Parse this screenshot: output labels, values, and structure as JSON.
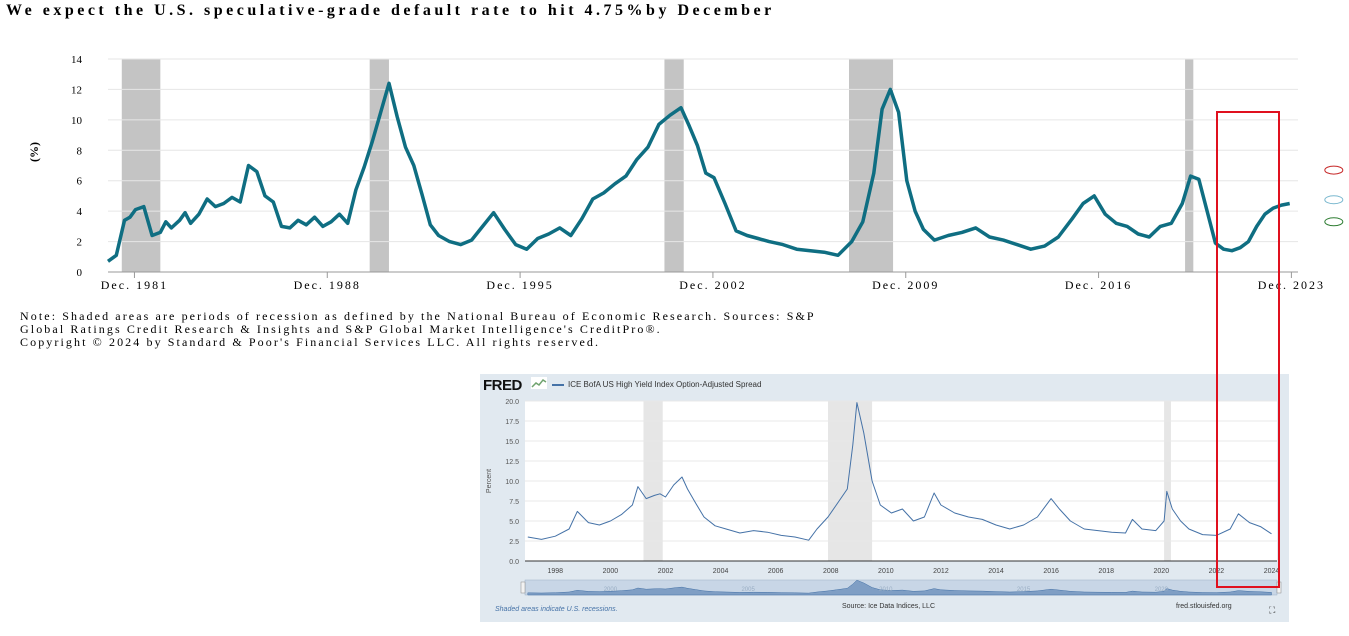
{
  "title": "We expect the U.S. speculative-grade default rate to hit 4.75%by December",
  "note_lines": [
    "Note: Shaded areas are periods of recession as defined by the National Bureau of Economic Research. Sources: S&P",
    "Global Ratings Credit Research & Insights and S&P Global Market Intelligence's CreditPro®.",
    "Copyright © 2024 by Standard & Poor's Financial Services LLC. All rights reserved."
  ],
  "fred": {
    "logo": "FRED",
    "legend": "ICE BofA US High Yield Index Option-Adjusted Spread",
    "footer_left": "Shaded areas indicate U.S. recessions.",
    "footer_source": "Source: Ice Data Indices, LLC",
    "footer_url": "fred.stlouisfed.org",
    "navigator_labels": [
      "2000",
      "2005",
      "2010",
      "2015",
      "2020"
    ]
  },
  "colors": {
    "default_rate_line": "#0f6e82",
    "recession_shade": "#c4c4c4",
    "fred_line": "#4572a7",
    "fred_background": "#e1e9f0",
    "fred_recession": "#e6e6e6",
    "highlight_box": "#e0101e",
    "marker_optimistic": "#2e7d32",
    "marker_base": "#7ab8cf",
    "marker_pessimistic": "#c62828"
  },
  "chart_data": [
    {
      "type": "line",
      "title": "We expect the U.S. speculative-grade default rate to hit 4.75%by December",
      "ylabel": "(%)",
      "xlabel": "",
      "ylim": [
        0,
        14
      ],
      "yticks": [
        0,
        2,
        4,
        6,
        8,
        10,
        12,
        14
      ],
      "xlim": [
        1981.0,
        2024.2
      ],
      "xtick_labels": [
        "Dec. 1981",
        "Dec. 1988",
        "Dec. 1995",
        "Dec. 2002",
        "Dec. 2009",
        "Dec. 2016",
        "Dec. 2023"
      ],
      "xtick_values": [
        1981.96,
        1988.96,
        1995.96,
        2002.96,
        2009.96,
        2016.96,
        2023.96
      ],
      "grid": true,
      "recessions": [
        [
          1981.5,
          1982.9
        ],
        [
          1990.5,
          1991.2
        ],
        [
          2001.2,
          2001.9
        ],
        [
          2007.9,
          2009.5
        ],
        [
          2020.1,
          2020.4
        ]
      ],
      "scenario_markers": [
        {
          "scenario": "pessimistic",
          "x": 2025.5,
          "y": 6.7
        },
        {
          "scenario": "base",
          "x": 2025.5,
          "y": 4.75
        },
        {
          "scenario": "optimistic",
          "x": 2025.5,
          "y": 3.3
        }
      ],
      "series": [
        {
          "name": "",
          "x": [
            1981.0,
            1981.3,
            1981.6,
            1981.8,
            1982.0,
            1982.3,
            1982.6,
            1982.9,
            1983.1,
            1983.3,
            1983.6,
            1983.8,
            1984.0,
            1984.3,
            1984.6,
            1984.9,
            1985.2,
            1985.5,
            1985.8,
            1986.1,
            1986.4,
            1986.7,
            1987.0,
            1987.3,
            1987.6,
            1987.9,
            1988.2,
            1988.5,
            1988.8,
            1989.1,
            1989.4,
            1989.7,
            1990.0,
            1990.3,
            1990.6,
            1990.9,
            1991.2,
            1991.5,
            1991.8,
            1992.1,
            1992.4,
            1992.7,
            1993.0,
            1993.4,
            1993.8,
            1994.2,
            1994.6,
            1995.0,
            1995.4,
            1995.8,
            1996.2,
            1996.6,
            1997.0,
            1997.4,
            1997.8,
            1998.2,
            1998.6,
            1999.0,
            1999.4,
            1999.8,
            2000.2,
            2000.6,
            2001.0,
            2001.4,
            2001.8,
            2002.1,
            2002.4,
            2002.7,
            2003.0,
            2003.4,
            2003.8,
            2004.2,
            2004.6,
            2005.0,
            2005.5,
            2006.0,
            2006.5,
            2007.0,
            2007.5,
            2008.0,
            2008.4,
            2008.8,
            2009.1,
            2009.4,
            2009.7,
            2010.0,
            2010.3,
            2010.6,
            2011.0,
            2011.5,
            2012.0,
            2012.5,
            2013.0,
            2013.5,
            2014.0,
            2014.5,
            2015.0,
            2015.5,
            2016.0,
            2016.4,
            2016.8,
            2017.2,
            2017.6,
            2018.0,
            2018.4,
            2018.8,
            2019.2,
            2019.6,
            2020.0,
            2020.3,
            2020.6,
            2020.9,
            2021.2,
            2021.5,
            2021.8,
            2022.1,
            2022.4,
            2022.7,
            2023.0,
            2023.3,
            2023.6,
            2023.9
          ],
          "y": [
            0.7,
            1.1,
            3.4,
            3.6,
            4.1,
            4.3,
            2.4,
            2.6,
            3.3,
            2.9,
            3.4,
            3.9,
            3.2,
            3.8,
            4.8,
            4.3,
            4.5,
            4.9,
            4.6,
            7.0,
            6.6,
            5.0,
            4.6,
            3.0,
            2.9,
            3.4,
            3.1,
            3.6,
            3.0,
            3.3,
            3.8,
            3.2,
            5.4,
            6.9,
            8.6,
            10.5,
            12.4,
            10.2,
            8.2,
            7.0,
            5.1,
            3.1,
            2.4,
            2.0,
            1.8,
            2.1,
            3.0,
            3.9,
            2.8,
            1.8,
            1.5,
            2.2,
            2.5,
            2.9,
            2.4,
            3.5,
            4.8,
            5.2,
            5.8,
            6.3,
            7.4,
            8.2,
            9.7,
            10.3,
            10.8,
            9.6,
            8.3,
            6.5,
            6.2,
            4.5,
            2.7,
            2.4,
            2.2,
            2.0,
            1.8,
            1.5,
            1.4,
            1.3,
            1.1,
            2.0,
            3.3,
            6.5,
            10.7,
            12.0,
            10.5,
            6.0,
            4.0,
            2.8,
            2.1,
            2.4,
            2.6,
            2.9,
            2.3,
            2.1,
            1.8,
            1.5,
            1.7,
            2.3,
            3.5,
            4.5,
            5.0,
            3.8,
            3.2,
            3.0,
            2.5,
            2.3,
            3.0,
            3.2,
            4.5,
            6.3,
            6.1,
            4.0,
            1.9,
            1.5,
            1.4,
            1.6,
            2.0,
            3.0,
            3.8,
            4.2,
            4.4,
            4.5
          ]
        }
      ]
    },
    {
      "type": "line",
      "title": "",
      "ylabel": "Percent",
      "xlabel": "",
      "ylim": [
        0,
        20
      ],
      "yticks": [
        0.0,
        2.5,
        5.0,
        7.5,
        10.0,
        12.5,
        15.0,
        17.5,
        20.0
      ],
      "xlim": [
        1996.9,
        2024.2
      ],
      "xticks": [
        1998,
        2000,
        2002,
        2004,
        2006,
        2008,
        2010,
        2012,
        2014,
        2016,
        2018,
        2020,
        2022,
        2024
      ],
      "grid": true,
      "recessions": [
        [
          2001.2,
          2001.9
        ],
        [
          2007.9,
          2009.5
        ],
        [
          2020.1,
          2020.35
        ]
      ],
      "series": [
        {
          "name": "ICE BofA US High Yield Index Option-Adjusted Spread",
          "x": [
            1997.0,
            1997.5,
            1998.0,
            1998.5,
            1998.8,
            1999.2,
            1999.6,
            2000.0,
            2000.4,
            2000.8,
            2001.0,
            2001.3,
            2001.6,
            2001.8,
            2002.0,
            2002.3,
            2002.6,
            2002.8,
            2003.1,
            2003.4,
            2003.8,
            2004.2,
            2004.7,
            2005.2,
            2005.7,
            2006.2,
            2006.7,
            2007.2,
            2007.5,
            2007.9,
            2008.2,
            2008.6,
            2008.8,
            2008.95,
            2009.2,
            2009.5,
            2009.8,
            2010.2,
            2010.6,
            2011.0,
            2011.4,
            2011.75,
            2012.0,
            2012.5,
            2013.0,
            2013.5,
            2014.0,
            2014.5,
            2015.0,
            2015.5,
            2016.0,
            2016.3,
            2016.7,
            2017.2,
            2017.7,
            2018.2,
            2018.7,
            2018.95,
            2019.3,
            2019.8,
            2020.1,
            2020.2,
            2020.4,
            2020.7,
            2021.0,
            2021.5,
            2022.0,
            2022.5,
            2022.8,
            2023.2,
            2023.6,
            2024.0
          ],
          "y": [
            3.0,
            2.7,
            3.1,
            4.0,
            6.2,
            4.8,
            4.5,
            5.0,
            5.8,
            7.0,
            9.3,
            7.8,
            8.2,
            8.4,
            8.0,
            9.5,
            10.5,
            9.0,
            7.2,
            5.5,
            4.4,
            4.0,
            3.5,
            3.8,
            3.6,
            3.2,
            3.0,
            2.6,
            4.0,
            5.5,
            7.0,
            9.0,
            14.5,
            19.8,
            16.0,
            10.0,
            7.0,
            6.0,
            6.5,
            5.0,
            5.5,
            8.5,
            7.0,
            6.0,
            5.5,
            5.2,
            4.5,
            4.0,
            4.5,
            5.5,
            7.8,
            6.5,
            5.0,
            4.0,
            3.8,
            3.6,
            3.5,
            5.2,
            4.0,
            3.8,
            5.0,
            8.7,
            6.5,
            5.0,
            4.0,
            3.3,
            3.2,
            4.0,
            5.9,
            4.8,
            4.3,
            3.4
          ]
        }
      ]
    }
  ]
}
